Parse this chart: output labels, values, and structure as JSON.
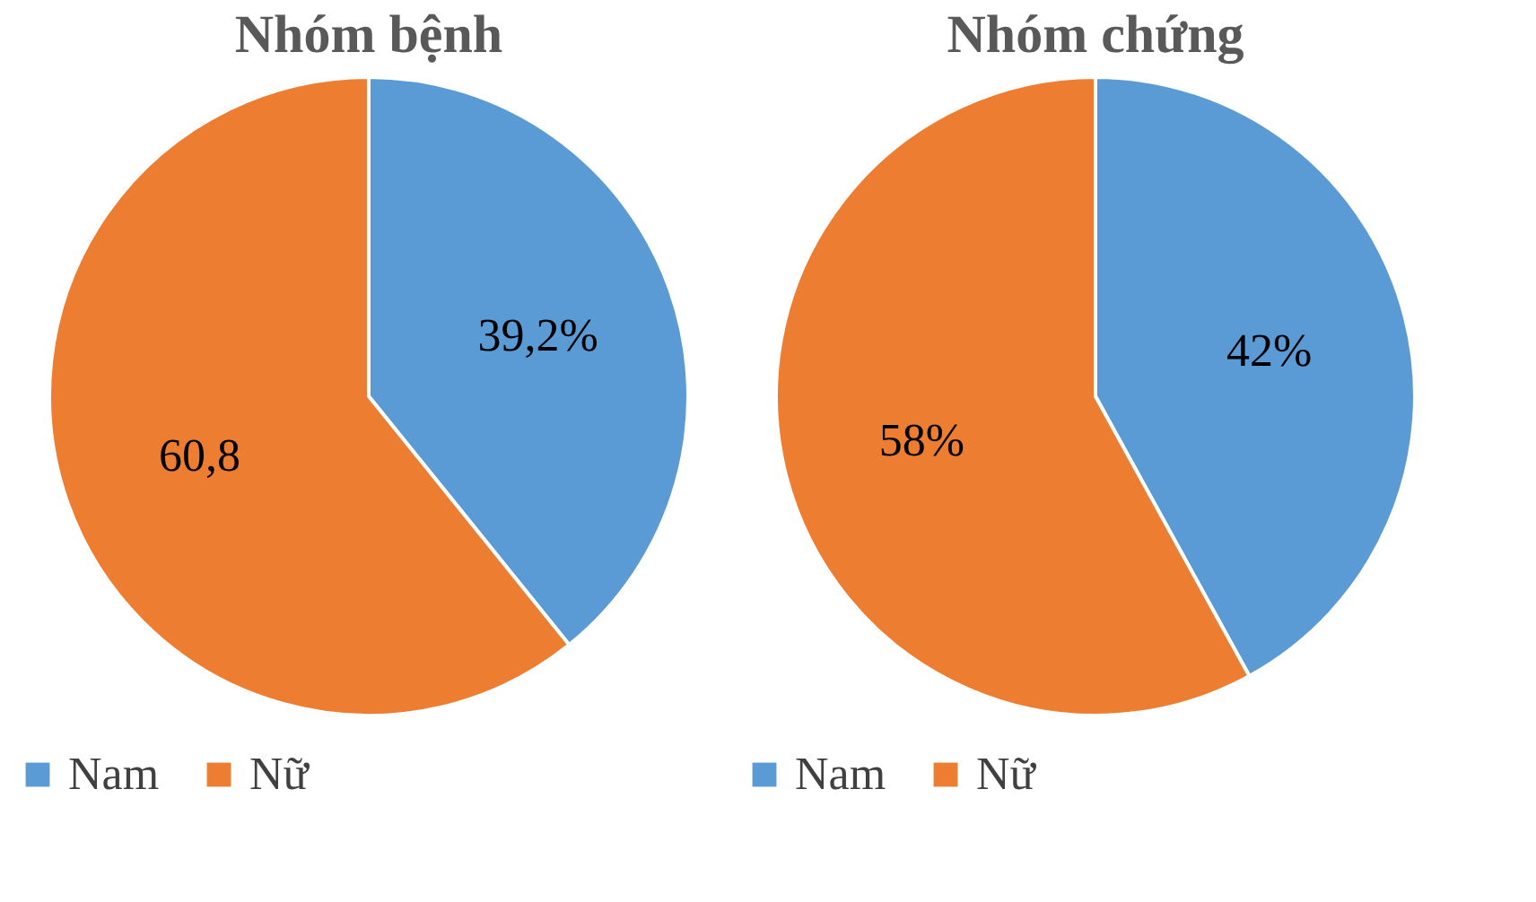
{
  "chart_data": [
    {
      "type": "pie",
      "title": "Nhóm bệnh",
      "categories": [
        "Nam",
        "Nữ"
      ],
      "values": [
        39.2,
        60.8
      ],
      "colors": [
        "#5b9bd5",
        "#ed7d31"
      ],
      "value_labels": [
        "39,2%",
        "60,8"
      ],
      "legend": "bottom"
    },
    {
      "type": "pie",
      "title": "Nhóm chứng",
      "categories": [
        "Nam",
        "Nữ"
      ],
      "values": [
        42,
        58
      ],
      "colors": [
        "#5b9bd5",
        "#ed7d31"
      ],
      "value_labels": [
        "42%",
        "58%"
      ],
      "legend": "bottom"
    }
  ]
}
